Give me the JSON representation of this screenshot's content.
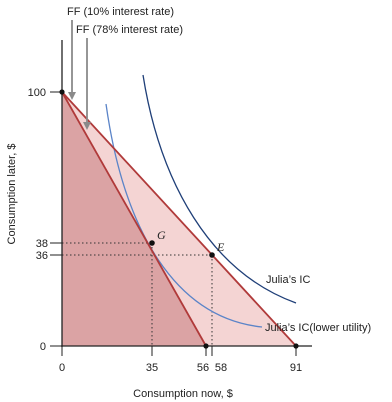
{
  "labels": {
    "ff_10": "FF (10% interest rate)",
    "ff_78": "FF (78% interest rate)",
    "ic_high": "Julia’s IC",
    "ic_low": "Julia’s IC(lower utility)",
    "point_g": "G",
    "point_e": "E"
  },
  "axes": {
    "x_title": "Consumption now, $",
    "y_title": "Consumption later, $",
    "x_ticks": [
      "0",
      "35",
      "56",
      "58",
      "91"
    ],
    "y_ticks": [
      "0",
      "36",
      "38",
      "100"
    ]
  },
  "chart_data": {
    "type": "line",
    "xlabel": "Consumption now, $",
    "ylabel": "Consumption later, $",
    "xlim": [
      0,
      100
    ],
    "ylim": [
      0,
      115
    ],
    "feasible_frontiers": [
      {
        "name": "FF (10% interest rate)",
        "x_intercept": 91,
        "y_intercept": 100
      },
      {
        "name": "FF (78% interest rate)",
        "x_intercept": 56,
        "y_intercept": 100
      }
    ],
    "indifference_curves": [
      {
        "name": "Julia’s IC",
        "tangent_point": [
          58,
          36
        ]
      },
      {
        "name": "Julia’s IC(lower utility)",
        "tangent_point": [
          35,
          38
        ]
      }
    ],
    "points": [
      {
        "name": "G",
        "x": 35,
        "y": 38
      },
      {
        "name": "E",
        "x": 58,
        "y": 36
      }
    ],
    "colors": {
      "ff_line": "#b03a3a",
      "area_light": "#f4d4d3",
      "area_dark": "#dba3a4",
      "ic_high": "#1f3f78",
      "ic_low": "#5b84c8",
      "axis": "#222222",
      "arrow": "#8a8a8a"
    }
  }
}
